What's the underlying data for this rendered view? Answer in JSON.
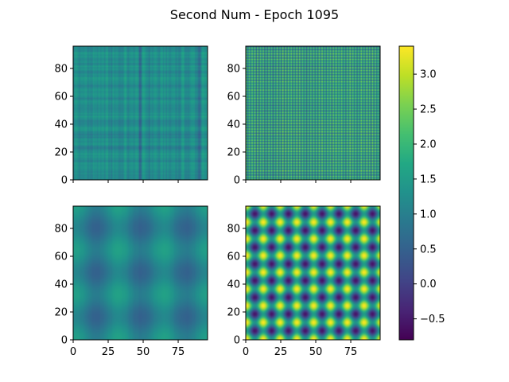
{
  "figure": {
    "title": "Second Num - Epoch 1095"
  },
  "chart_data": [
    {
      "type": "heatmap",
      "name": "top-left",
      "title": "",
      "xlabel": "",
      "ylabel": "",
      "x_range": [
        0,
        96
      ],
      "y_range": [
        0,
        96
      ],
      "xticks": [],
      "yticks": [
        0,
        20,
        40,
        60,
        80
      ],
      "pattern": "fine vertical and horizontal stripes, values ~0.9-1.6, darker vertical lines near x=48 and x=90",
      "value_range": [
        0.6,
        1.7
      ]
    },
    {
      "type": "heatmap",
      "name": "top-right",
      "title": "",
      "xlabel": "",
      "ylabel": "",
      "x_range": [
        0,
        96
      ],
      "y_range": [
        0,
        96
      ],
      "xticks": [],
      "yticks": [
        0,
        20,
        40,
        60,
        80
      ],
      "pattern": "dense high-frequency grid, alternating ~0.8 and ~2.1",
      "value_range": [
        0.6,
        2.3
      ]
    },
    {
      "type": "heatmap",
      "name": "bottom-left",
      "title": "",
      "xlabel": "",
      "ylabel": "",
      "x_range": [
        0,
        96
      ],
      "y_range": [
        0,
        96
      ],
      "xticks": [
        0,
        25,
        50,
        75
      ],
      "yticks": [
        0,
        20,
        40,
        60,
        80
      ],
      "pattern": "smooth low-frequency periodic blobs, period ~32, values ~0.6-1.6",
      "value_range": [
        0.5,
        1.7
      ]
    },
    {
      "type": "heatmap",
      "name": "bottom-right",
      "title": "",
      "xlabel": "",
      "ylabel": "",
      "x_range": [
        0,
        96
      ],
      "y_range": [
        0,
        96
      ],
      "xticks": [
        0,
        25,
        50,
        75
      ],
      "yticks": [
        0,
        20,
        40,
        60,
        80
      ],
      "pattern": "checkerboard of circular blobs, period ~12, values ~-0.6-3.4",
      "value_range": [
        -0.6,
        3.4
      ]
    }
  ],
  "colorbar": {
    "colormap": "viridis",
    "vmin": -0.8,
    "vmax": 3.4,
    "ticks": [
      -0.5,
      0.0,
      0.5,
      1.0,
      1.5,
      2.0,
      2.5,
      3.0
    ],
    "tick_labels": [
      "−0.5",
      "0.0",
      "0.5",
      "1.0",
      "1.5",
      "2.0",
      "2.5",
      "3.0"
    ]
  }
}
